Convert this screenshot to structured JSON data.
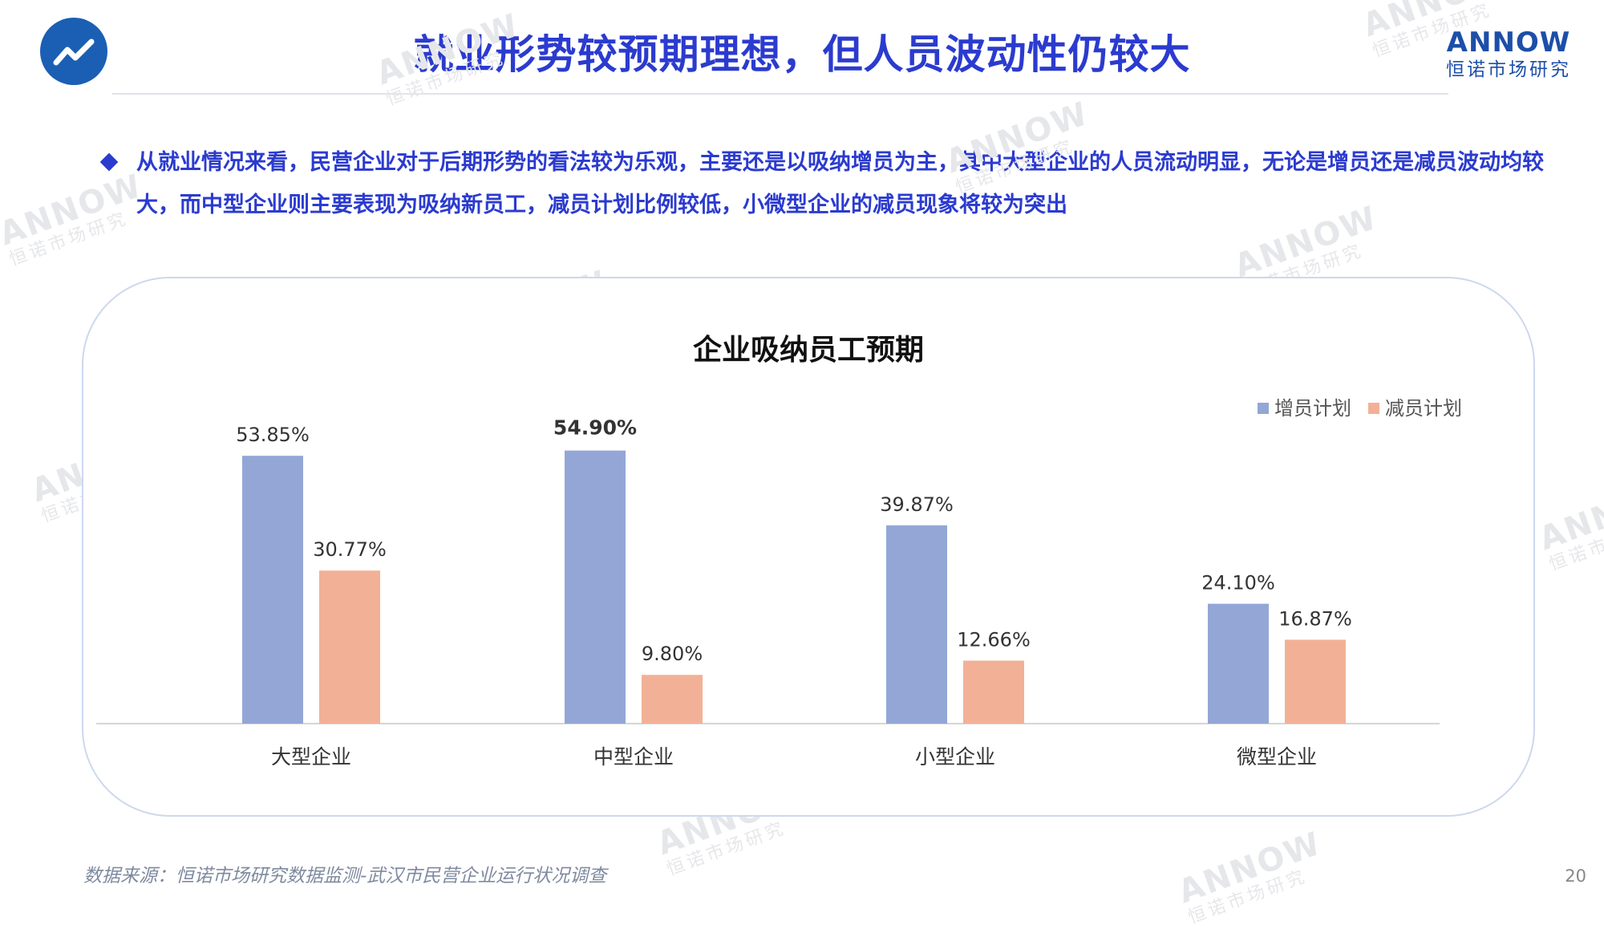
{
  "header": {
    "title": "就业形势较预期理想，但人员波动性仍较大",
    "brand_name": "ANNOW",
    "brand_sub": "恒诺市场研究",
    "logo_icon": "trend-line-icon"
  },
  "bullet": {
    "text": "从就业情况来看，民营企业对于后期形势的看法较为乐观，主要还是以吸纳增员为主，其中大型企业的人员流动明显，无论是增员还是减员波动均较大，而中型企业则主要表现为吸纳新员工，减员计划比例较低，小微型企业的减员现象将较为突出"
  },
  "watermark": {
    "name": "ANNOW",
    "sub": "恒诺市场研究"
  },
  "chart_data": {
    "type": "bar",
    "title": "企业吸纳员工预期",
    "categories": [
      "大型企业",
      "中型企业",
      "小型企业",
      "微型企业"
    ],
    "series": [
      {
        "name": "增员计划",
        "values": [
          53.85,
          54.9,
          39.87,
          24.1
        ],
        "labels": [
          "53.85%",
          "54.90%",
          "39.87%",
          "24.10%"
        ],
        "color": "#93a6d6"
      },
      {
        "name": "减员计划",
        "values": [
          30.77,
          9.8,
          12.66,
          16.87
        ],
        "labels": [
          "30.77%",
          "9.80%",
          "12.66%",
          "16.87%"
        ],
        "color": "#f2b196"
      }
    ],
    "ylim": [
      0,
      60
    ],
    "legend": "top-right",
    "grid": false,
    "highlight_label": "54.90%"
  },
  "footer": {
    "source": "数据来源：恒诺市场研究数据监测-武汉市民营企业运行状况调查",
    "page": "20"
  }
}
